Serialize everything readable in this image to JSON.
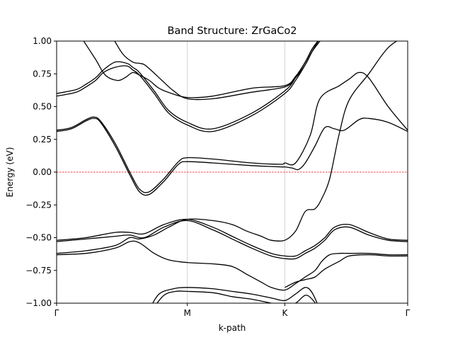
{
  "chart_data": {
    "type": "line",
    "title": "Band Structure: ZrGaCo2",
    "xlabel": "k-path",
    "ylabel": "Energy (eV)",
    "ylim": [
      -1.0,
      1.0
    ],
    "xlim": [
      0,
      3.6
    ],
    "high_symmetry_points": [
      {
        "label": "Γ",
        "x": 0.0
      },
      {
        "label": "M",
        "x": 1.34
      },
      {
        "label": "K",
        "x": 2.34
      },
      {
        "label": "Γ",
        "x": 3.6
      }
    ],
    "y_ticks": [
      {
        "value": 1.0,
        "label": "1.00"
      },
      {
        "value": 0.75,
        "label": "0.75"
      },
      {
        "value": 0.5,
        "label": "0.50"
      },
      {
        "value": 0.25,
        "label": "0.25"
      },
      {
        "value": 0.0,
        "label": "0.00"
      },
      {
        "value": -0.25,
        "label": "−0.25"
      },
      {
        "value": -0.5,
        "label": "−0.50"
      },
      {
        "value": -0.75,
        "label": "−0.75"
      },
      {
        "value": -1.0,
        "label": "−1.00"
      }
    ],
    "fermi_level": {
      "energy": 0.0,
      "color": "#ff0000",
      "style": "dashed"
    },
    "band_color": "#000000",
    "vertical_grid_color": "#cccccc",
    "series": [
      {
        "x": [
          0.26,
          0.4,
          0.5,
          0.62,
          0.7,
          0.78,
          0.85,
          0.95,
          1.05,
          1.18,
          1.34,
          1.6,
          2.0,
          2.34,
          2.45,
          2.55,
          2.62,
          2.7
        ],
        "values": [
          1.02,
          0.86,
          0.74,
          0.7,
          0.72,
          0.76,
          0.74,
          0.7,
          0.64,
          0.6,
          0.57,
          0.58,
          0.64,
          0.66,
          0.73,
          0.84,
          0.94,
          1.02
        ]
      },
      {
        "x": [
          0.58,
          0.68,
          0.78,
          0.85,
          0.9,
          0.98,
          1.08,
          1.2,
          1.34,
          1.6,
          2.0,
          2.34,
          2.45,
          2.55,
          2.62,
          2.7
        ],
        "values": [
          1.02,
          0.9,
          0.84,
          0.83,
          0.82,
          0.77,
          0.7,
          0.62,
          0.56,
          0.56,
          0.61,
          0.65,
          0.72,
          0.82,
          0.92,
          1.02
        ]
      },
      {
        "x": [
          0.0,
          0.2,
          0.3,
          0.4,
          0.48,
          0.6,
          0.72,
          0.78,
          0.85,
          1.0,
          1.15,
          1.34,
          1.6,
          2.0,
          2.34,
          2.45,
          2.55,
          2.62,
          2.7
        ],
        "values": [
          0.6,
          0.63,
          0.67,
          0.72,
          0.78,
          0.84,
          0.83,
          0.8,
          0.76,
          0.62,
          0.47,
          0.38,
          0.33,
          0.45,
          0.62,
          0.72,
          0.84,
          0.94,
          1.02
        ]
      },
      {
        "x": [
          0.0,
          0.2,
          0.3,
          0.4,
          0.48,
          0.6,
          0.72,
          0.78,
          0.85,
          1.0,
          1.15,
          1.34,
          1.6,
          2.0,
          2.34,
          2.45,
          2.55,
          2.62,
          2.7
        ],
        "values": [
          0.58,
          0.61,
          0.65,
          0.7,
          0.76,
          0.8,
          0.81,
          0.78,
          0.74,
          0.6,
          0.45,
          0.36,
          0.31,
          0.43,
          0.6,
          0.7,
          0.82,
          0.92,
          1.0
        ]
      },
      {
        "x": [
          0.0,
          0.15,
          0.3,
          0.38,
          0.45,
          0.6,
          0.75,
          0.85,
          0.95,
          1.1,
          1.25,
          1.34,
          1.6,
          2.0,
          2.3,
          2.34,
          2.45,
          2.6,
          2.7,
          2.9,
          3.0,
          3.1,
          3.2,
          3.4,
          3.6
        ],
        "values": [
          0.32,
          0.34,
          0.4,
          0.42,
          0.39,
          0.22,
          0.0,
          -0.13,
          -0.15,
          -0.05,
          0.08,
          0.11,
          0.1,
          0.07,
          0.06,
          0.07,
          0.07,
          0.28,
          0.56,
          0.66,
          0.71,
          0.76,
          0.72,
          0.5,
          0.32
        ]
      },
      {
        "x": [
          0.0,
          0.15,
          0.3,
          0.38,
          0.45,
          0.6,
          0.75,
          0.85,
          0.95,
          1.1,
          1.25,
          1.34,
          1.6,
          2.0,
          2.3,
          2.34,
          2.42,
          2.48,
          2.55,
          2.65,
          2.75,
          2.85,
          2.95,
          3.1,
          3.2,
          3.4,
          3.6
        ],
        "values": [
          0.31,
          0.33,
          0.39,
          0.41,
          0.38,
          0.2,
          -0.02,
          -0.15,
          -0.17,
          -0.07,
          0.06,
          0.08,
          0.07,
          0.05,
          0.04,
          0.04,
          0.03,
          0.02,
          0.07,
          0.2,
          0.34,
          0.33,
          0.32,
          0.4,
          0.41,
          0.38,
          0.31
        ]
      },
      {
        "x": [
          0.0,
          0.3,
          0.6,
          0.75,
          0.9,
          1.1,
          1.34,
          1.6,
          1.8,
          2.0,
          2.2,
          2.34,
          2.45,
          2.55,
          2.65,
          2.75,
          2.85,
          3.0,
          3.2,
          3.4,
          3.6
        ],
        "values": [
          -0.52,
          -0.5,
          -0.46,
          -0.46,
          -0.47,
          -0.4,
          -0.36,
          -0.42,
          -0.49,
          -0.56,
          -0.62,
          -0.64,
          -0.64,
          -0.6,
          -0.56,
          -0.5,
          -0.42,
          -0.4,
          -0.46,
          -0.51,
          -0.52
        ]
      },
      {
        "x": [
          0.0,
          0.3,
          0.6,
          0.75,
          0.9,
          1.1,
          1.34,
          1.6,
          1.8,
          2.0,
          2.2,
          2.34,
          2.45,
          2.55,
          2.65,
          2.75,
          2.85,
          3.0,
          3.2,
          3.4,
          3.6
        ],
        "values": [
          -0.53,
          -0.51,
          -0.49,
          -0.48,
          -0.5,
          -0.42,
          -0.37,
          -0.44,
          -0.51,
          -0.58,
          -0.64,
          -0.66,
          -0.66,
          -0.62,
          -0.58,
          -0.52,
          -0.44,
          -0.42,
          -0.48,
          -0.52,
          -0.53
        ]
      },
      {
        "x": [
          0.0,
          0.3,
          0.6,
          0.75,
          0.85,
          1.0,
          1.15,
          1.34,
          1.6,
          1.8,
          1.95,
          2.1,
          2.2,
          2.34,
          2.45,
          2.55,
          2.65,
          2.72,
          2.8,
          2.9,
          3.0,
          3.2,
          3.4,
          3.6
        ],
        "values": [
          -0.62,
          -0.6,
          -0.56,
          -0.5,
          -0.51,
          -0.48,
          -0.42,
          -0.36,
          -0.37,
          -0.4,
          -0.45,
          -0.49,
          -0.52,
          -0.52,
          -0.45,
          -0.3,
          -0.28,
          -0.2,
          -0.05,
          0.3,
          0.55,
          0.75,
          0.95,
          1.05
        ]
      },
      {
        "x": [
          0.0,
          0.3,
          0.6,
          0.75,
          0.85,
          1.0,
          1.15,
          1.34,
          1.6,
          1.8,
          1.95,
          2.1,
          2.2,
          2.34,
          2.45,
          2.55,
          2.65,
          2.72,
          2.8,
          2.9,
          3.0,
          3.2,
          3.4,
          3.6
        ],
        "values": [
          -0.63,
          -0.62,
          -0.58,
          -0.53,
          -0.54,
          -0.62,
          -0.67,
          -0.69,
          -0.7,
          -0.72,
          -0.78,
          -0.84,
          -0.88,
          -0.9,
          -0.85,
          -0.8,
          -0.75,
          -0.68,
          -0.63,
          -0.62,
          -0.62,
          -0.62,
          -0.63,
          -0.63
        ]
      },
      {
        "x": [
          2.34,
          2.45,
          2.55,
          2.65,
          2.75,
          2.9,
          3.0,
          3.2,
          3.4,
          3.6
        ],
        "values": [
          -0.88,
          -0.84,
          -0.82,
          -0.8,
          -0.74,
          -0.68,
          -0.64,
          -0.63,
          -0.64,
          -0.64
        ]
      },
      {
        "x": [
          0.95,
          1.05,
          1.2,
          1.34,
          1.6,
          1.8,
          2.0,
          2.2,
          2.34,
          2.45,
          2.55,
          2.62,
          2.7
        ],
        "values": [
          -1.05,
          -0.93,
          -0.89,
          -0.88,
          -0.89,
          -0.91,
          -0.93,
          -0.96,
          -0.98,
          -0.93,
          -0.88,
          -0.92,
          -1.05
        ]
      },
      {
        "x": [
          0.98,
          1.1,
          1.22,
          1.34,
          1.6,
          1.8,
          2.0,
          2.2,
          2.34,
          2.45,
          2.55,
          2.62,
          2.7
        ],
        "values": [
          -1.05,
          -0.94,
          -0.91,
          -0.91,
          -0.92,
          -0.95,
          -0.97,
          -1.0,
          -1.02,
          -1.0,
          -0.94,
          -0.97,
          -1.05
        ]
      }
    ]
  }
}
